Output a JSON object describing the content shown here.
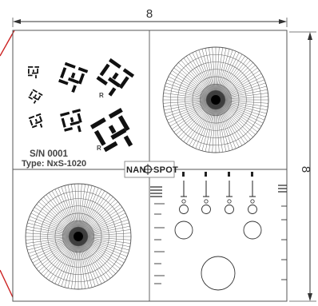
{
  "dimensions": {
    "width_label": "8",
    "height_label": "8"
  },
  "serial": {
    "sn_text": "S/N 0001",
    "type_text": "Type: NxS-1020"
  },
  "logo": {
    "text_left": "NAN",
    "text_right": "SPOT"
  },
  "pattern_labels": {
    "small_r_1": "R",
    "small_r_2": "R"
  },
  "colors": {
    "line": "#444444",
    "dim_line": "#333333",
    "accent_edge": "#cc2222",
    "pattern": "#111111",
    "siemens_mid": "#9a9a9a"
  },
  "icons": [
    "siemens-star-icon",
    "resolution-target-icon",
    "dimension-arrow-icon",
    "crosshair-logo-icon"
  ]
}
